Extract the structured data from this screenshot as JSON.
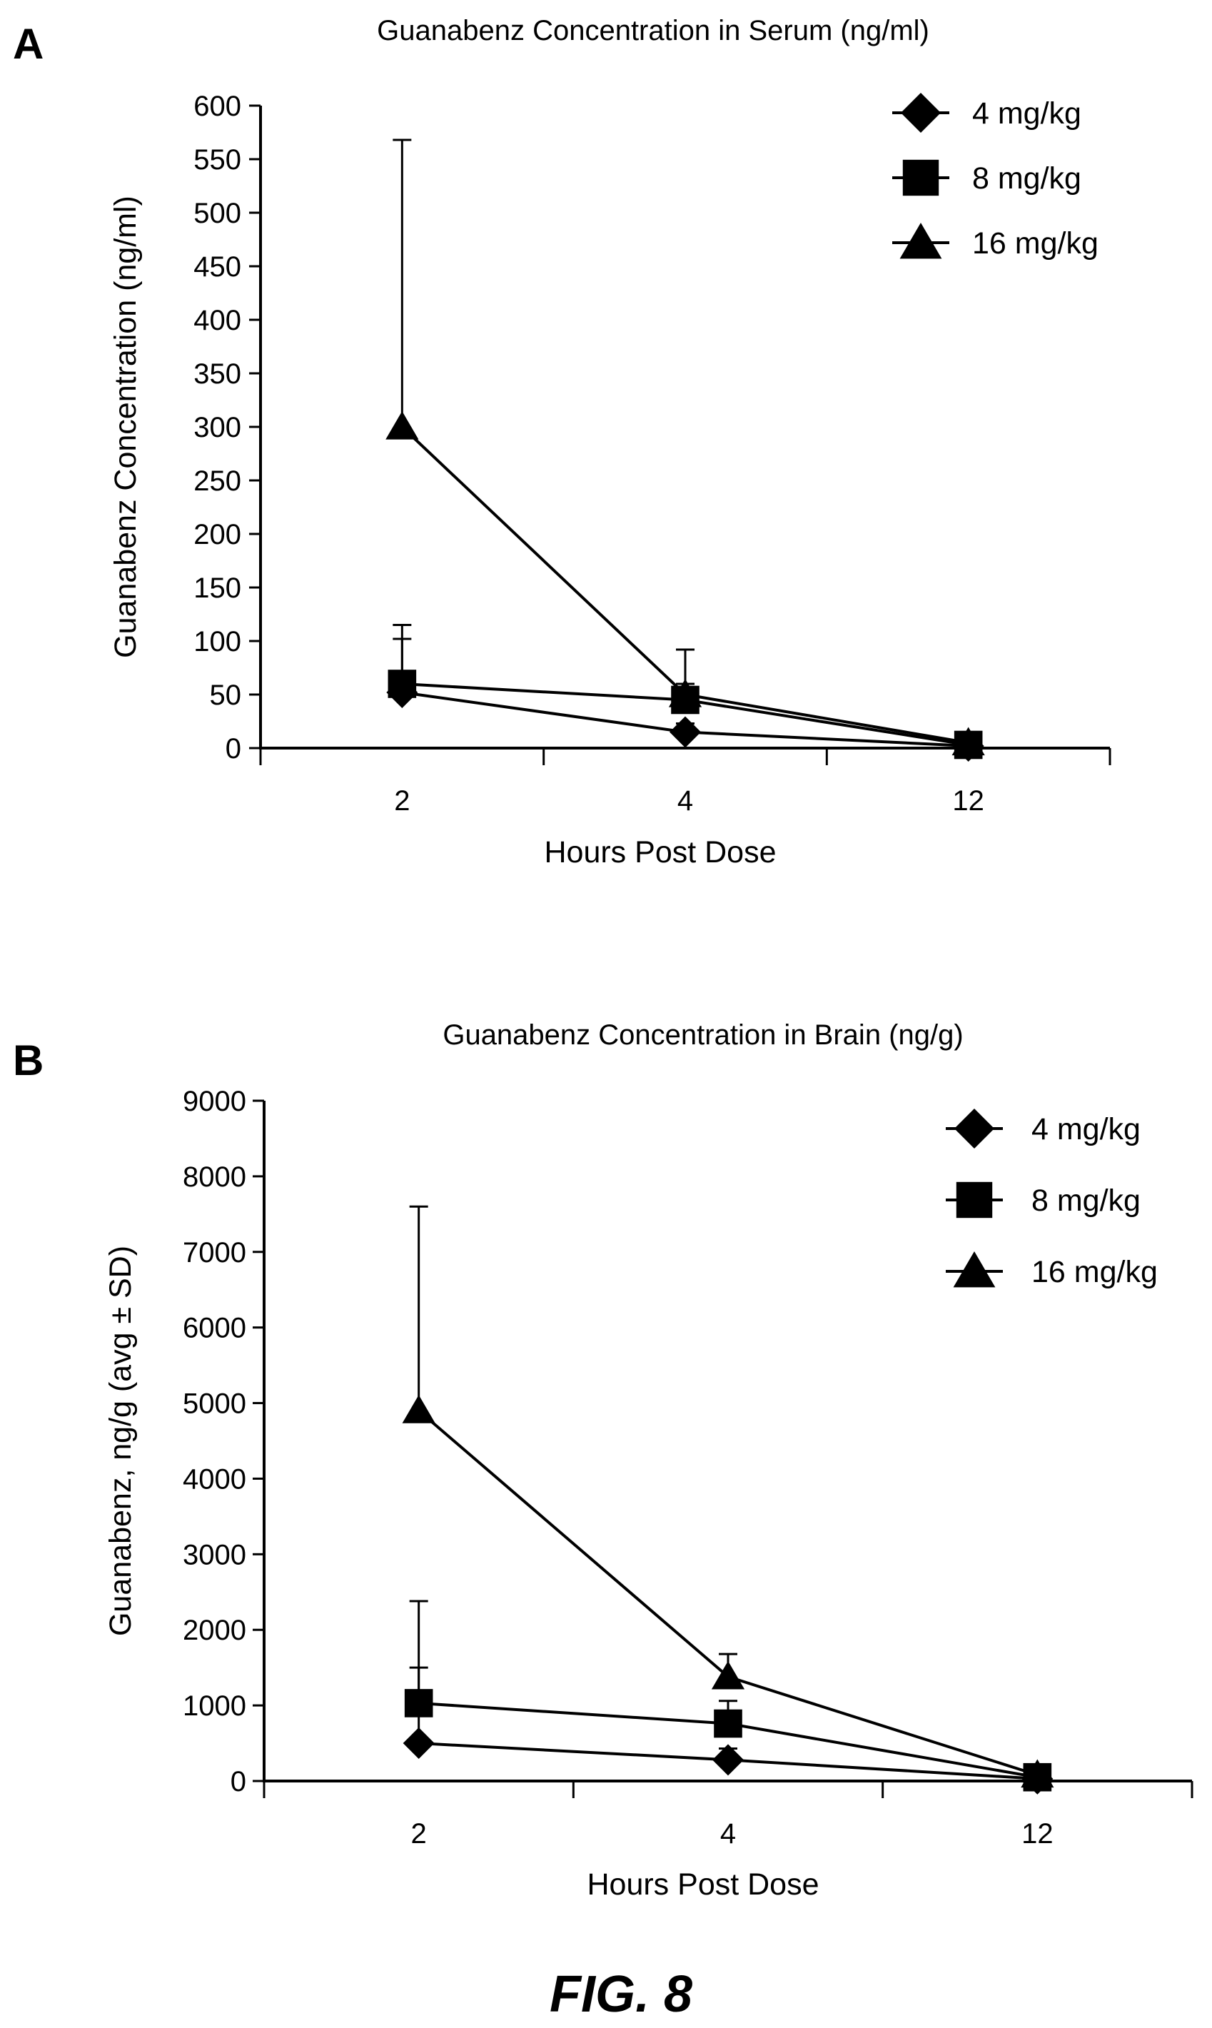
{
  "panel_a_letter": "A",
  "panel_b_letter": "B",
  "figure_caption": "FIG. 8",
  "chart_data": [
    {
      "type": "line",
      "title": "Guanabenz Concentration in Serum (ng/ml)",
      "xlabel": "Hours Post Dose",
      "ylabel": "Guanabenz Concentration (ng/ml)",
      "categories": [
        "2",
        "4",
        "12"
      ],
      "ylim": [
        0,
        600
      ],
      "yticks": [
        "0",
        "50",
        "100",
        "150",
        "200",
        "250",
        "300",
        "350",
        "400",
        "450",
        "500",
        "550",
        "600"
      ],
      "legend_position": "top-right",
      "series": [
        {
          "name": "4 mg/kg",
          "marker": "diamond",
          "values": [
            52,
            15,
            2
          ],
          "error": [
            50,
            8,
            5
          ]
        },
        {
          "name": "8 mg/kg",
          "marker": "square",
          "values": [
            60,
            45,
            3
          ],
          "error": [
            55,
            47,
            5
          ]
        },
        {
          "name": "16 mg/kg",
          "marker": "triangle",
          "values": [
            300,
            50,
            5
          ],
          "error": [
            268,
            10,
            8
          ]
        }
      ]
    },
    {
      "type": "line",
      "title": "Guanabenz Concentration in Brain (ng/g)",
      "xlabel": "Hours Post Dose",
      "ylabel": "Guanabenz, ng/g (avg ± SD)",
      "categories": [
        "2",
        "4",
        "12"
      ],
      "ylim": [
        0,
        9000
      ],
      "yticks": [
        "0",
        "1000",
        "2000",
        "3000",
        "4000",
        "5000",
        "6000",
        "7000",
        "8000",
        "9000"
      ],
      "legend_position": "top-right",
      "series": [
        {
          "name": "4 mg/kg",
          "marker": "diamond",
          "values": [
            500,
            280,
            30
          ],
          "error": [
            1000,
            150,
            50
          ]
        },
        {
          "name": "8 mg/kg",
          "marker": "square",
          "values": [
            1030,
            760,
            50
          ],
          "error": [
            1350,
            300,
            80
          ]
        },
        {
          "name": "16 mg/kg",
          "marker": "triangle",
          "values": [
            4900,
            1380,
            80
          ],
          "error": [
            2700,
            300,
            100
          ]
        }
      ]
    }
  ]
}
